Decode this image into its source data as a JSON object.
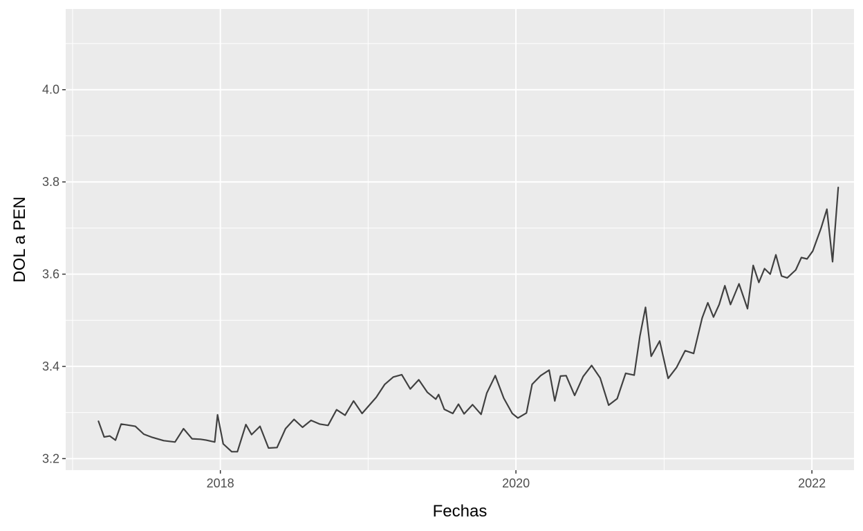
{
  "chart_data": {
    "type": "line",
    "title": "",
    "xlabel": "Fechas",
    "ylabel": "DOL a PEN",
    "x_axis_type": "date",
    "xlim": [
      "2016-12-15",
      "2022-04-15"
    ],
    "ylim": [
      3.175,
      4.175
    ],
    "x_ticks": [
      {
        "value": "2018-01-01",
        "label": "2018"
      },
      {
        "value": "2020-01-01",
        "label": "2020"
      },
      {
        "value": "2022-01-01",
        "label": "2022"
      }
    ],
    "x_minor_ticks": [
      "2017-01-01",
      "2019-01-01",
      "2021-01-01"
    ],
    "y_ticks": [
      {
        "value": 3.2,
        "label": "3.2"
      },
      {
        "value": 3.4,
        "label": "3.4"
      },
      {
        "value": 3.6,
        "label": "3.6"
      },
      {
        "value": 3.8,
        "label": "3.8"
      },
      {
        "value": 4.0,
        "label": "4.0"
      }
    ],
    "y_minor_ticks": [
      3.3,
      3.5,
      3.7,
      3.9,
      4.1
    ],
    "grid": true,
    "legend": "none",
    "colors": {
      "panel": "#EBEBEB",
      "grid": "#FFFFFF",
      "line": "#404040",
      "tick_text": "#4D4D4D",
      "title_text": "#000000"
    },
    "series": [
      {
        "x": [
          "2017-03-06",
          "2017-03-20",
          "2017-04-03",
          "2017-04-17",
          "2017-05-01",
          "2017-05-15",
          "2017-06-05",
          "2017-06-26",
          "2017-07-17",
          "2017-08-14",
          "2017-09-11",
          "2017-10-02",
          "2017-10-23",
          "2017-11-13",
          "2017-11-27",
          "2017-12-18",
          "2017-12-25",
          "2018-01-08",
          "2018-01-29",
          "2018-02-12",
          "2018-03-05",
          "2018-03-19",
          "2018-04-09",
          "2018-04-30",
          "2018-05-21",
          "2018-06-11",
          "2018-07-02",
          "2018-07-23",
          "2018-08-13",
          "2018-09-03",
          "2018-09-24",
          "2018-10-15",
          "2018-11-05",
          "2018-11-26",
          "2018-12-17",
          "2018-12-31",
          "2019-01-21",
          "2019-02-11",
          "2019-03-04",
          "2019-03-25",
          "2019-04-15",
          "2019-05-06",
          "2019-05-27",
          "2019-06-17",
          "2019-06-24",
          "2019-07-08",
          "2019-07-29",
          "2019-08-12",
          "2019-08-26",
          "2019-09-16",
          "2019-10-07",
          "2019-10-21",
          "2019-11-11",
          "2019-12-02",
          "2019-12-23",
          "2020-01-06",
          "2020-01-27",
          "2020-02-10",
          "2020-03-02",
          "2020-03-23",
          "2020-04-06",
          "2020-04-20",
          "2020-05-04",
          "2020-05-25",
          "2020-06-15",
          "2020-07-06",
          "2020-07-27",
          "2020-08-17",
          "2020-09-07",
          "2020-09-28",
          "2020-10-19",
          "2020-11-02",
          "2020-11-16",
          "2020-11-30",
          "2020-12-21",
          "2021-01-11",
          "2021-02-01",
          "2021-02-22",
          "2021-03-15",
          "2021-04-05",
          "2021-04-19",
          "2021-05-03",
          "2021-05-17",
          "2021-05-31",
          "2021-06-14",
          "2021-07-05",
          "2021-07-26",
          "2021-08-09",
          "2021-08-23",
          "2021-09-06",
          "2021-09-20",
          "2021-10-04",
          "2021-10-18",
          "2021-11-01",
          "2021-11-22",
          "2021-12-06",
          "2021-12-20",
          "2022-01-03",
          "2022-01-24",
          "2022-02-07",
          "2022-02-21",
          "2022-03-07"
        ],
        "y": [
          3.281,
          3.247,
          3.249,
          3.24,
          3.275,
          3.273,
          3.27,
          3.253,
          3.246,
          3.239,
          3.236,
          3.265,
          3.243,
          3.242,
          3.24,
          3.236,
          3.295,
          3.232,
          3.215,
          3.215,
          3.274,
          3.252,
          3.27,
          3.223,
          3.224,
          3.265,
          3.285,
          3.268,
          3.283,
          3.275,
          3.272,
          3.306,
          3.294,
          3.325,
          3.298,
          3.312,
          3.333,
          3.361,
          3.377,
          3.382,
          3.351,
          3.371,
          3.344,
          3.329,
          3.339,
          3.307,
          3.298,
          3.318,
          3.297,
          3.317,
          3.296,
          3.342,
          3.38,
          3.331,
          3.298,
          3.288,
          3.299,
          3.361,
          3.38,
          3.392,
          3.325,
          3.379,
          3.38,
          3.337,
          3.378,
          3.402,
          3.375,
          3.316,
          3.33,
          3.385,
          3.381,
          3.465,
          3.528,
          3.422,
          3.455,
          3.374,
          3.398,
          3.434,
          3.428,
          3.505,
          3.538,
          3.507,
          3.534,
          3.575,
          3.534,
          3.579,
          3.525,
          3.619,
          3.582,
          3.612,
          3.6,
          3.642,
          3.596,
          3.592,
          3.609,
          3.636,
          3.633,
          3.65,
          3.701,
          3.741,
          3.627,
          3.788
        ]
      }
    ]
  }
}
